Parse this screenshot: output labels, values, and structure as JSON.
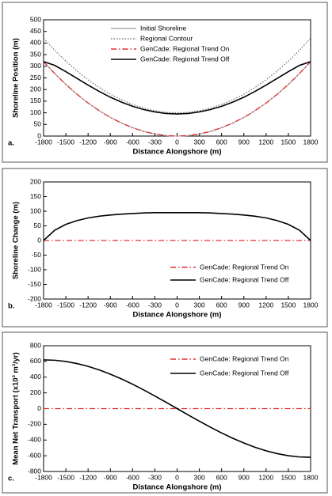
{
  "chart_data": [
    {
      "type": "line",
      "panel_label": "a.",
      "xlabel": "Distance Alongshore (m)",
      "ylabel": "Shoreline Position (m)",
      "x": [
        -1800,
        -1650,
        -1500,
        -1350,
        -1200,
        -1050,
        -900,
        -750,
        -600,
        -450,
        -300,
        -150,
        0,
        150,
        300,
        450,
        600,
        750,
        900,
        1050,
        1200,
        1350,
        1500,
        1650,
        1800
      ],
      "xlim": [
        -1800,
        1800
      ],
      "xticks": [
        -1800,
        -1500,
        -1200,
        -900,
        -600,
        -300,
        0,
        300,
        600,
        900,
        1200,
        1500,
        1800
      ],
      "ylim": [
        0,
        500
      ],
      "yticks": [
        0,
        50,
        100,
        150,
        200,
        250,
        300,
        350,
        400,
        450,
        500
      ],
      "legend": "top",
      "series": [
        {
          "name": "Initial Shoreline",
          "color": "#b0b0b0",
          "dash": "solid",
          "values": [
            320,
            269,
            222,
            180,
            142,
            109,
            80,
            56,
            36,
            20,
            9,
            2,
            0,
            2,
            9,
            20,
            36,
            56,
            80,
            109,
            142,
            180,
            222,
            269,
            320
          ]
        },
        {
          "name": "Regional Contour",
          "color": "#777777",
          "dash": "dot",
          "values": [
            420,
            369,
            322,
            280,
            242,
            209,
            180,
            156,
            136,
            120,
            109,
            102,
            100,
            102,
            109,
            120,
            136,
            156,
            180,
            209,
            242,
            280,
            322,
            369,
            420
          ]
        },
        {
          "name": "GenCade: Regional Trend On",
          "color": "#e03030",
          "dash": "dashdot",
          "values": [
            320,
            269,
            222,
            180,
            142,
            109,
            80,
            56,
            36,
            20,
            9,
            2,
            0,
            2,
            9,
            20,
            36,
            56,
            80,
            109,
            142,
            180,
            222,
            269,
            320
          ]
        },
        {
          "name": "GenCade: Regional Trend Off",
          "color": "#000000",
          "dash": "solid",
          "values": [
            320,
            304,
            277,
            248,
            219,
            192,
            167,
            146,
            128,
            114,
            104,
            97,
            95,
            97,
            104,
            114,
            128,
            146,
            167,
            192,
            219,
            248,
            277,
            304,
            320
          ]
        }
      ]
    },
    {
      "type": "line",
      "panel_label": "b.",
      "xlabel": "Distance Alongshore (m)",
      "ylabel": "Shoreline Change (m)",
      "x": [
        -1800,
        -1650,
        -1500,
        -1350,
        -1200,
        -1050,
        -900,
        -750,
        -600,
        -450,
        -300,
        -150,
        0,
        150,
        300,
        450,
        600,
        750,
        900,
        1050,
        1200,
        1350,
        1500,
        1650,
        1800
      ],
      "xlim": [
        -1800,
        1800
      ],
      "xticks": [
        -1800,
        -1500,
        -1200,
        -900,
        -600,
        -300,
        0,
        300,
        600,
        900,
        1200,
        1500,
        1800
      ],
      "ylim": [
        -200,
        200
      ],
      "yticks": [
        -200,
        -150,
        -100,
        -50,
        0,
        50,
        100,
        150,
        200
      ],
      "legend": "bottom-right",
      "series": [
        {
          "name": "GenCade: Regional Trend On",
          "color": "#e03030",
          "dash": "dashdot",
          "values": [
            0,
            0,
            0,
            0,
            0,
            0,
            0,
            0,
            0,
            0,
            0,
            0,
            0,
            0,
            0,
            0,
            0,
            0,
            0,
            0,
            0,
            0,
            0,
            0,
            0
          ]
        },
        {
          "name": "GenCade: Regional Trend Off",
          "color": "#000000",
          "dash": "solid",
          "values": [
            0,
            35,
            55,
            68,
            77,
            83,
            87,
            90,
            92,
            94,
            95,
            95,
            95,
            95,
            95,
            94,
            92,
            90,
            87,
            83,
            77,
            68,
            55,
            35,
            0
          ]
        }
      ]
    },
    {
      "type": "line",
      "panel_label": "c.",
      "xlabel": "Distance Alongshore (m)",
      "ylabel": "Mean Net Transport (x10³ m³/yr)",
      "x": [
        -1800,
        -1650,
        -1500,
        -1350,
        -1200,
        -1050,
        -900,
        -750,
        -600,
        -450,
        -300,
        -150,
        0,
        150,
        300,
        450,
        600,
        750,
        900,
        1050,
        1200,
        1350,
        1500,
        1650,
        1800
      ],
      "xlim": [
        -1800,
        1800
      ],
      "xticks": [
        -1800,
        -1500,
        -1200,
        -900,
        -600,
        -300,
        0,
        300,
        600,
        900,
        1200,
        1500,
        1800
      ],
      "ylim": [
        -800,
        800
      ],
      "yticks": [
        -800,
        -600,
        -400,
        -200,
        0,
        200,
        400,
        600,
        800
      ],
      "legend": "top-right",
      "series": [
        {
          "name": "GenCade: Regional Trend On",
          "color": "#e03030",
          "dash": "dashdot",
          "values": [
            0,
            0,
            0,
            0,
            0,
            0,
            0,
            0,
            0,
            0,
            0,
            0,
            0,
            0,
            0,
            0,
            0,
            0,
            0,
            0,
            0,
            0,
            0,
            0,
            0
          ]
        },
        {
          "name": "GenCade: Regional Trend Off",
          "color": "#000000",
          "dash": "solid",
          "values": [
            620,
            615,
            599,
            573,
            537,
            492,
            438,
            377,
            310,
            237,
            160,
            81,
            0,
            -81,
            -160,
            -237,
            -310,
            -377,
            -438,
            -492,
            -537,
            -573,
            -599,
            -615,
            -620
          ]
        }
      ]
    }
  ]
}
